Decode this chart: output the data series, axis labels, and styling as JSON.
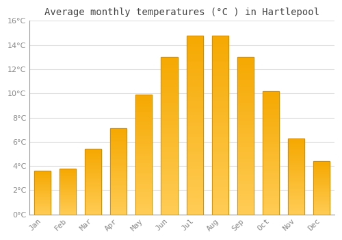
{
  "title": "Average monthly temperatures (°C ) in Hartlepool",
  "months": [
    "Jan",
    "Feb",
    "Mar",
    "Apr",
    "May",
    "Jun",
    "Jul",
    "Aug",
    "Sep",
    "Oct",
    "Nov",
    "Dec"
  ],
  "values": [
    3.6,
    3.8,
    5.4,
    7.1,
    9.9,
    13.0,
    14.8,
    14.8,
    13.0,
    10.2,
    6.3,
    4.4
  ],
  "bar_color_top": "#F5A800",
  "bar_color_bottom": "#FFCC55",
  "bar_edge_color": "#CC8800",
  "ylim": [
    0,
    16
  ],
  "yticks": [
    0,
    2,
    4,
    6,
    8,
    10,
    12,
    14,
    16
  ],
  "background_color": "#FFFFFF",
  "plot_bg_color": "#FFFFFF",
  "grid_color": "#DDDDDD",
  "title_fontsize": 10,
  "tick_fontsize": 8,
  "tick_color": "#888888",
  "title_color": "#444444"
}
